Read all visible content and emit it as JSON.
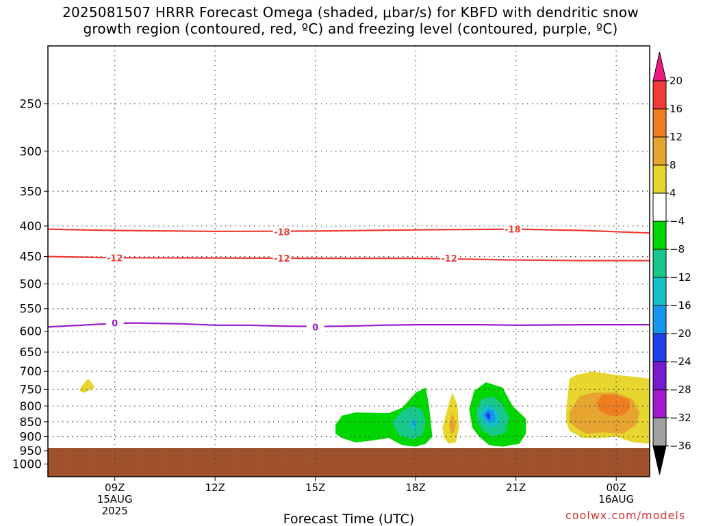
{
  "title_lines": [
    "2025081507 HRRR Forecast Omega (shaded, μbar/s) for KBFD with dendritic snow",
    "growth region (contoured, red, ºC) and freezing level (contoured, purple, ºC)"
  ],
  "credit": "coolwx.com/models",
  "chart_data": {
    "type": "contour",
    "title": "2025081507 HRRR Forecast Omega (shaded, μbar/s) for KBFD with dendritic snow growth region (contoured, red, ºC) and freezing level (contoured, purple, ºC)",
    "xlabel": "Forecast Time (UTC)",
    "ylabel": "",
    "x_range_hours": [
      7,
      25
    ],
    "x_ticks": [
      {
        "hour": 9,
        "lines": [
          "09Z",
          "15AUG",
          "2025"
        ]
      },
      {
        "hour": 12,
        "lines": [
          "12Z"
        ]
      },
      {
        "hour": 15,
        "lines": [
          "15Z"
        ]
      },
      {
        "hour": 18,
        "lines": [
          "18Z"
        ]
      },
      {
        "hour": 21,
        "lines": [
          "21Z"
        ]
      },
      {
        "hour": 24,
        "lines": [
          "00Z",
          "16AUG"
        ]
      }
    ],
    "y_scale": "log",
    "y_range_hPa": [
      1050,
      200
    ],
    "y_ticks": [
      250,
      300,
      350,
      400,
      450,
      500,
      550,
      600,
      650,
      700,
      750,
      800,
      850,
      900,
      950,
      1000
    ],
    "grid": true,
    "ground_below_hPa": 940,
    "ground_color": "#a0522d",
    "colorbar": {
      "labels": [
        "20",
        "16",
        "12",
        "8",
        "4",
        "−4",
        "−8",
        "−12",
        "−16",
        "−20",
        "−24",
        "−28",
        "−32",
        "−36"
      ],
      "colors": [
        "#ee1a82",
        "#f23a3a",
        "#ef7d22",
        "#e6a530",
        "#e6d62e",
        "#ffffff",
        "#00d600",
        "#18c88a",
        "#12c2c8",
        "#1597ef",
        "#1f3fe8",
        "#7a1ad0",
        "#a21ad0",
        "#a0a0a0",
        "#000000"
      ]
    },
    "contours": [
      {
        "name": "-18",
        "color": "#ee3a32",
        "points": [
          [
            7,
            405
          ],
          [
            9,
            407
          ],
          [
            12,
            408.5
          ],
          [
            15,
            408
          ],
          [
            18,
            406
          ],
          [
            21,
            405
          ],
          [
            23,
            407
          ],
          [
            25,
            411
          ]
        ],
        "labels": [
          [
            14,
            409
          ],
          [
            20.9,
            405
          ]
        ]
      },
      {
        "name": "-12",
        "color": "#ee3a32",
        "points": [
          [
            7,
            450
          ],
          [
            9,
            452
          ],
          [
            12,
            452.5
          ],
          [
            15,
            453
          ],
          [
            18,
            453
          ],
          [
            21,
            456
          ],
          [
            23,
            457
          ],
          [
            25,
            457
          ]
        ],
        "labels": [
          [
            9,
            452
          ],
          [
            14,
            453
          ],
          [
            19,
            453
          ]
        ]
      },
      {
        "name": "0",
        "color": "#9a19c8",
        "points": [
          [
            7,
            590
          ],
          [
            8.5,
            584
          ],
          [
            9.5,
            581
          ],
          [
            11,
            583
          ],
          [
            12,
            586
          ],
          [
            13,
            586
          ],
          [
            14,
            588
          ],
          [
            15,
            589
          ],
          [
            16,
            588
          ],
          [
            17,
            586
          ],
          [
            18,
            585
          ],
          [
            20,
            585
          ],
          [
            21,
            586
          ],
          [
            23,
            585
          ],
          [
            25,
            585
          ]
        ],
        "labels": [
          [
            9,
            581
          ],
          [
            15,
            590
          ]
        ]
      }
    ],
    "omega_features": [
      {
        "color": "#e6d62e",
        "polygon": [
          [
            8,
            742
          ],
          [
            8.2,
            720
          ],
          [
            8.3,
            730
          ],
          [
            8.4,
            745
          ],
          [
            8.1,
            760
          ],
          [
            7.95,
            755
          ]
        ]
      },
      {
        "color": "#00d600",
        "polygon": [
          [
            15.6,
            860
          ],
          [
            15.8,
            830
          ],
          [
            16.2,
            820
          ],
          [
            17.2,
            822
          ],
          [
            17.6,
            805
          ],
          [
            18,
            760
          ],
          [
            18.3,
            745
          ],
          [
            18.4,
            800
          ],
          [
            18.5,
            900
          ],
          [
            18.3,
            925
          ],
          [
            18,
            935
          ],
          [
            17.6,
            930
          ],
          [
            17.2,
            905
          ],
          [
            16.6,
            915
          ],
          [
            16.2,
            920
          ],
          [
            15.8,
            905
          ],
          [
            15.6,
            890
          ]
        ]
      },
      {
        "color": "#18c88a",
        "polygon": [
          [
            17.3,
            850
          ],
          [
            17.6,
            815
          ],
          [
            17.9,
            800
          ],
          [
            18.2,
            812
          ],
          [
            18.3,
            850
          ],
          [
            18.2,
            895
          ],
          [
            17.9,
            910
          ],
          [
            17.5,
            895
          ]
        ]
      },
      {
        "color": "#12c2c8",
        "polygon": [
          [
            17.8,
            860
          ],
          [
            17.9,
            840
          ],
          [
            18.0,
            845
          ],
          [
            18.0,
            875
          ],
          [
            17.9,
            880
          ]
        ]
      },
      {
        "color": "#1597ef",
        "polygon": [
          [
            17.92,
            850
          ],
          [
            17.97,
            845
          ],
          [
            18.0,
            860
          ],
          [
            17.95,
            866
          ]
        ]
      },
      {
        "color": "#e6d62e",
        "polygon": [
          [
            18.8,
            870
          ],
          [
            19.0,
            790
          ],
          [
            19.1,
            760
          ],
          [
            19.25,
            795
          ],
          [
            19.3,
            870
          ],
          [
            19.2,
            920
          ],
          [
            19.0,
            925
          ],
          [
            18.85,
            905
          ]
        ]
      },
      {
        "color": "#e6a530",
        "polygon": [
          [
            19.0,
            860
          ],
          [
            19.1,
            820
          ],
          [
            19.2,
            860
          ],
          [
            19.15,
            885
          ],
          [
            19.05,
            890
          ]
        ]
      },
      {
        "color": "#00d600",
        "polygon": [
          [
            19.6,
            810
          ],
          [
            19.75,
            755
          ],
          [
            20.1,
            730
          ],
          [
            20.6,
            745
          ],
          [
            20.9,
            800
          ],
          [
            21.3,
            840
          ],
          [
            21.3,
            890
          ],
          [
            21.1,
            925
          ],
          [
            20.6,
            935
          ],
          [
            20.2,
            930
          ],
          [
            19.9,
            900
          ],
          [
            19.7,
            870
          ]
        ]
      },
      {
        "color": "#18c88a",
        "polygon": [
          [
            19.8,
            820
          ],
          [
            19.95,
            780
          ],
          [
            20.3,
            770
          ],
          [
            20.6,
            795
          ],
          [
            20.8,
            835
          ],
          [
            20.7,
            885
          ],
          [
            20.3,
            900
          ],
          [
            20.0,
            880
          ],
          [
            19.85,
            850
          ]
        ]
      },
      {
        "color": "#12c2c8",
        "polygon": [
          [
            19.9,
            830
          ],
          [
            20.05,
            800
          ],
          [
            20.3,
            800
          ],
          [
            20.5,
            825
          ],
          [
            20.55,
            855
          ],
          [
            20.3,
            870
          ],
          [
            20.1,
            860
          ]
        ]
      },
      {
        "color": "#1597ef",
        "polygon": [
          [
            20.0,
            830
          ],
          [
            20.15,
            808
          ],
          [
            20.35,
            815
          ],
          [
            20.4,
            845
          ],
          [
            20.2,
            855
          ]
        ]
      },
      {
        "color": "#1f3fe8",
        "polygon": [
          [
            20.1,
            830
          ],
          [
            20.17,
            818
          ],
          [
            20.25,
            830
          ],
          [
            20.2,
            845
          ]
        ]
      },
      {
        "color": "#e6d62e",
        "polygon": [
          [
            22.5,
            820
          ],
          [
            22.6,
            720
          ],
          [
            22.8,
            710
          ],
          [
            23.3,
            700
          ],
          [
            24,
            710
          ],
          [
            24.6,
            715
          ],
          [
            25,
            720
          ],
          [
            25,
            925
          ],
          [
            24.5,
            920
          ],
          [
            24,
            900
          ],
          [
            23.5,
            905
          ],
          [
            23,
            905
          ],
          [
            22.6,
            880
          ],
          [
            22.5,
            850
          ]
        ]
      },
      {
        "color": "#e6a530",
        "polygon": [
          [
            22.6,
            820
          ],
          [
            22.9,
            770
          ],
          [
            23.3,
            760
          ],
          [
            24,
            760
          ],
          [
            24.5,
            780
          ],
          [
            24.7,
            820
          ],
          [
            24.6,
            860
          ],
          [
            24.2,
            890
          ],
          [
            23.6,
            885
          ],
          [
            23.1,
            890
          ],
          [
            22.8,
            870
          ],
          [
            22.6,
            850
          ]
        ]
      },
      {
        "color": "#ef7d22",
        "polygon": [
          [
            23.4,
            790
          ],
          [
            23.6,
            765
          ],
          [
            24,
            768
          ],
          [
            24.4,
            780
          ],
          [
            24.4,
            810
          ],
          [
            24.2,
            830
          ],
          [
            23.8,
            830
          ],
          [
            23.5,
            815
          ]
        ]
      }
    ]
  }
}
